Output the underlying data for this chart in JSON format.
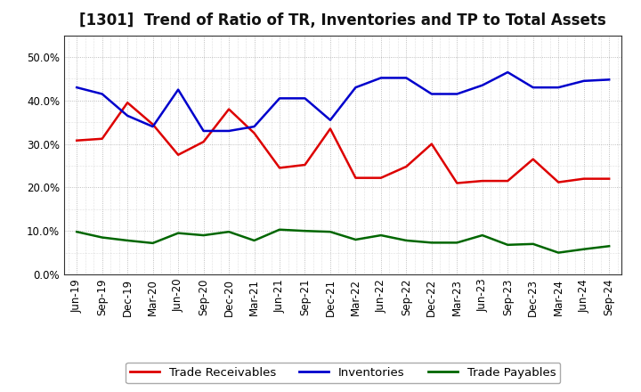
{
  "title": "[1301]  Trend of Ratio of TR, Inventories and TP to Total Assets",
  "x_labels": [
    "Jun-19",
    "Sep-19",
    "Dec-19",
    "Mar-20",
    "Jun-20",
    "Sep-20",
    "Dec-20",
    "Mar-21",
    "Jun-21",
    "Sep-21",
    "Dec-21",
    "Mar-22",
    "Jun-22",
    "Sep-22",
    "Dec-22",
    "Mar-23",
    "Jun-23",
    "Sep-23",
    "Dec-23",
    "Mar-24",
    "Jun-24",
    "Sep-24"
  ],
  "trade_receivables": [
    0.308,
    0.312,
    0.395,
    0.345,
    0.275,
    0.305,
    0.38,
    0.325,
    0.245,
    0.252,
    0.335,
    0.222,
    0.222,
    0.248,
    0.3,
    0.21,
    0.215,
    0.215,
    0.265,
    0.212,
    0.22,
    0.22
  ],
  "inventories": [
    0.43,
    0.415,
    0.365,
    0.34,
    0.425,
    0.33,
    0.33,
    0.34,
    0.405,
    0.405,
    0.355,
    0.43,
    0.452,
    0.452,
    0.415,
    0.415,
    0.435,
    0.465,
    0.43,
    0.43,
    0.445,
    0.448
  ],
  "trade_payables": [
    0.098,
    0.085,
    0.078,
    0.072,
    0.095,
    0.09,
    0.098,
    0.078,
    0.103,
    0.1,
    0.098,
    0.08,
    0.09,
    0.078,
    0.073,
    0.073,
    0.09,
    0.068,
    0.07,
    0.05,
    0.058,
    0.065
  ],
  "tr_color": "#dd0000",
  "inv_color": "#0000cc",
  "tp_color": "#006600",
  "bg_color": "#ffffff",
  "plot_bg_color": "#ffffff",
  "grid_color": "#888888",
  "ylim": [
    0.0,
    0.55
  ],
  "yticks": [
    0.0,
    0.1,
    0.2,
    0.3,
    0.4,
    0.5
  ],
  "title_fontsize": 12,
  "legend_fontsize": 9.5,
  "tick_fontsize": 8.5
}
